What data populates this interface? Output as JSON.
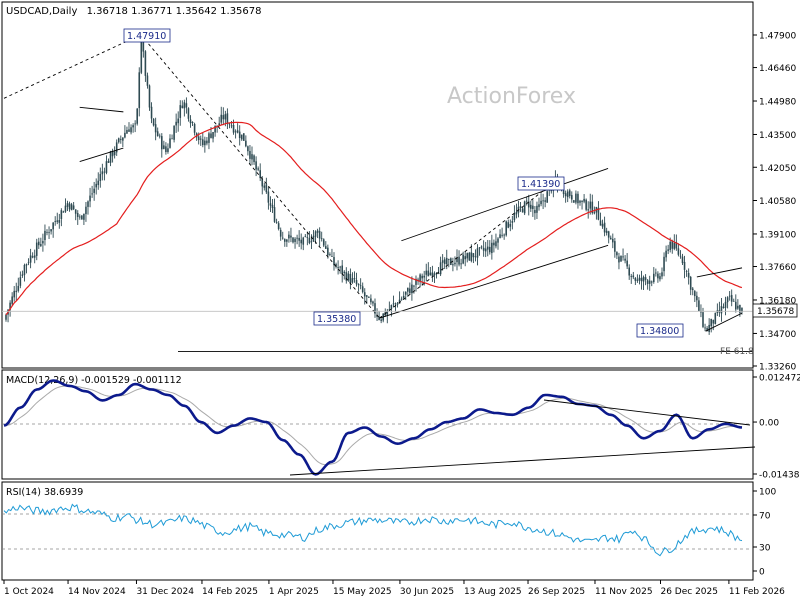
{
  "header": {
    "symbol": "USDCAD,Daily",
    "ohlc": "1.36718 1.36771 1.35642 1.35678"
  },
  "watermark": "ActionForex",
  "current_price": "1.35678",
  "chart_data": [
    {
      "type": "candlestick",
      "title": "USDCAD,Daily",
      "subtitle": "1.36718 1.36771 1.35642 1.35678",
      "x_tick_labels": [
        "1 Oct 2024",
        "14 Nov 2024",
        "31 Dec 2024",
        "14 Feb 2025",
        "1 Apr 2025",
        "15 May 2025",
        "30 Jun 2025",
        "13 Aug 2025",
        "26 Sep 2025",
        "11 Nov 2025",
        "26 Dec 2025",
        "11 Feb 2026"
      ],
      "y_tick_labels": [
        "1.47900",
        "1.46460",
        "1.44980",
        "1.43500",
        "1.42050",
        "1.40580",
        "1.39100",
        "1.37660",
        "1.36180",
        "1.34700",
        "1.33260"
      ],
      "ylim": [
        1.3326,
        1.486
      ],
      "price_path": [
        {
          "date": "1 Oct 2024",
          "close": 1.353
        },
        {
          "date": "15 Oct 2024",
          "close": 1.377
        },
        {
          "date": "1 Nov 2024",
          "close": 1.393
        },
        {
          "date": "14 Nov 2024",
          "close": 1.405
        },
        {
          "date": "22 Nov 2024",
          "close": 1.3975
        },
        {
          "date": "10 Dec 2024",
          "close": 1.422
        },
        {
          "date": "25 Dec 2024",
          "close": 1.438
        },
        {
          "date": "31 Dec 2024",
          "close": 1.438
        },
        {
          "date": "3 Jan 2025",
          "close": 1.4791
        },
        {
          "date": "10 Jan 2025",
          "close": 1.441
        },
        {
          "date": "20 Jan 2025",
          "close": 1.427
        },
        {
          "date": "1 Feb 2025",
          "close": 1.45
        },
        {
          "date": "14 Feb 2025",
          "close": 1.43
        },
        {
          "date": "1 Mar 2025",
          "close": 1.443
        },
        {
          "date": "15 Mar 2025",
          "close": 1.433
        },
        {
          "date": "1 Apr 2025",
          "close": 1.405
        },
        {
          "date": "10 Apr 2025",
          "close": 1.39
        },
        {
          "date": "25 Apr 2025",
          "close": 1.387
        },
        {
          "date": "5 May 2025",
          "close": 1.392
        },
        {
          "date": "15 May 2025",
          "close": 1.378
        },
        {
          "date": "1 Jun 2025",
          "close": 1.368
        },
        {
          "date": "16 Jun 2025",
          "close": 1.3538
        },
        {
          "date": "30 Jun 2025",
          "close": 1.362
        },
        {
          "date": "15 Jul 2025",
          "close": 1.372
        },
        {
          "date": "1 Aug 2025",
          "close": 1.378
        },
        {
          "date": "13 Aug 2025",
          "close": 1.38
        },
        {
          "date": "1 Sep 2025",
          "close": 1.385
        },
        {
          "date": "15 Sep 2025",
          "close": 1.398
        },
        {
          "date": "26 Sep 2025",
          "close": 1.405
        },
        {
          "date": "1 Oct 2025",
          "close": 1.4
        },
        {
          "date": "14 Oct 2025",
          "close": 1.4139
        },
        {
          "date": "1 Nov 2025",
          "close": 1.405
        },
        {
          "date": "11 Nov 2025",
          "close": 1.402
        },
        {
          "date": "26 Nov 2025",
          "close": 1.382
        },
        {
          "date": "10 Dec 2025",
          "close": 1.37
        },
        {
          "date": "26 Dec 2025",
          "close": 1.372
        },
        {
          "date": "1 Jan 2026",
          "close": 1.388
        },
        {
          "date": "10 Jan 2026",
          "close": 1.38
        },
        {
          "date": "26 Jan 2026",
          "close": 1.348
        },
        {
          "date": "11 Feb 2026",
          "close": 1.362
        },
        {
          "date": "20 Feb 2026",
          "close": 1.3568
        }
      ],
      "annotations": [
        {
          "text": "1.47910",
          "value": 1.4791
        },
        {
          "text": "1.41390",
          "value": 1.4139
        },
        {
          "text": "1.35380",
          "value": 1.3538
        },
        {
          "text": "1.34800",
          "value": 1.348
        },
        {
          "text": "FE 61.8",
          "value": 1.339
        }
      ]
    },
    {
      "type": "line",
      "title": "MACD(12,26,9) -0.001529 -0.001112",
      "y_tick_labels": [
        "0.012472",
        "0.00",
        "-0.014389"
      ],
      "ylim": [
        -0.0155,
        0.0135
      ],
      "series": [
        {
          "values": [
            -0.001,
            0.004,
            0.009,
            0.0115,
            0.01,
            0.0085,
            0.006,
            0.0075,
            0.0105,
            0.009,
            0.0075,
            0.0045,
            0.0,
            -0.003,
            -0.001,
            0.001,
            0.0,
            -0.005,
            -0.009,
            -0.0145,
            -0.011,
            -0.003,
            -0.0015,
            -0.004,
            -0.006,
            -0.0045,
            -0.002,
            0.0,
            0.001,
            0.0035,
            0.0025,
            0.002,
            0.004,
            0.0075,
            0.007,
            0.005,
            0.0045,
            0.002,
            -0.001,
            -0.0045,
            -0.0025,
            0.002,
            -0.0045,
            -0.002,
            -0.0005,
            -0.0015
          ]
        }
      ]
    },
    {
      "type": "line",
      "title": "RSI(14) 38.6939",
      "y_tick_labels": [
        "100",
        "70",
        "30",
        "0"
      ],
      "ylim": [
        0,
        100
      ],
      "levels": [
        70,
        30
      ],
      "series": [
        {
          "values": [
            73,
            80,
            76,
            74,
            78,
            80,
            75,
            72,
            66,
            69,
            62,
            58,
            60,
            66,
            62,
            54,
            48,
            52,
            56,
            48,
            46,
            44,
            42,
            52,
            56,
            60,
            62,
            64,
            63,
            60,
            62,
            66,
            62,
            64,
            64,
            60,
            58,
            62,
            56,
            52,
            48,
            44,
            38,
            36,
            42,
            40,
            52,
            38,
            22,
            30,
            46,
            52,
            54,
            48,
            38
          ]
        }
      ]
    }
  ]
}
